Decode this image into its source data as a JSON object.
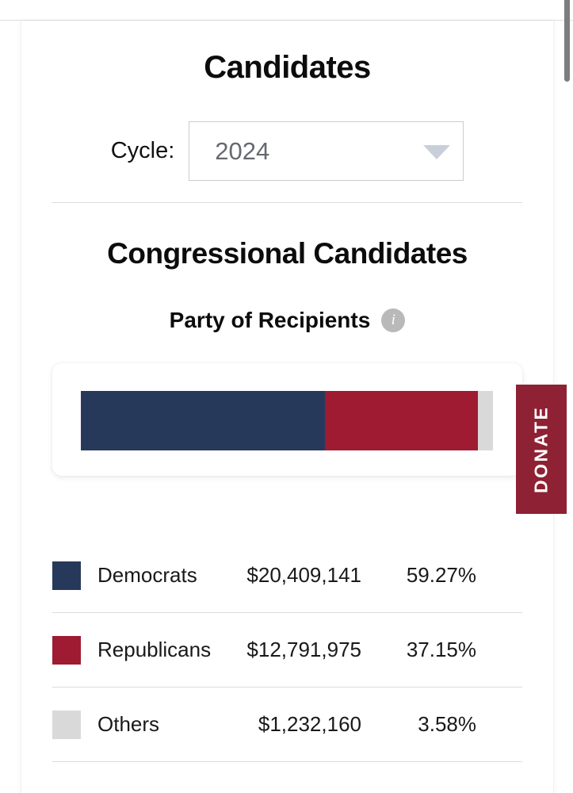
{
  "header": {
    "title": "Candidates"
  },
  "cycle": {
    "label": "Cycle:",
    "selected": "2024"
  },
  "section": {
    "title": "Congressional Candidates"
  },
  "chart_data": {
    "type": "bar",
    "subtype": "stacked-horizontal-single-bar",
    "title": "Party of Recipients",
    "info_glyph": "i",
    "categories": [
      "Democrats",
      "Republicans",
      "Others"
    ],
    "values": [
      20409141,
      12791975,
      1232160
    ],
    "value_labels": [
      "$20,409,141",
      "$12,791,975",
      "$1,232,160"
    ],
    "percents": [
      59.27,
      37.15,
      3.58
    ],
    "percent_labels": [
      "59.27%",
      "37.15%",
      "3.58%"
    ],
    "colors": [
      "#27395b",
      "#9e1b32",
      "#d9d9d9"
    ],
    "axes": "none",
    "legend_position": "below-as-table"
  },
  "donate": {
    "label": "DONATE",
    "color": "#8e2133"
  },
  "ui_colors": {
    "info_icon_bg": "#b9b9b9",
    "divider": "#dcdcdc",
    "scrollbar_thumb": "#7d7d7d",
    "select_border": "#c9ccd1",
    "caret": "#c9cedb"
  }
}
